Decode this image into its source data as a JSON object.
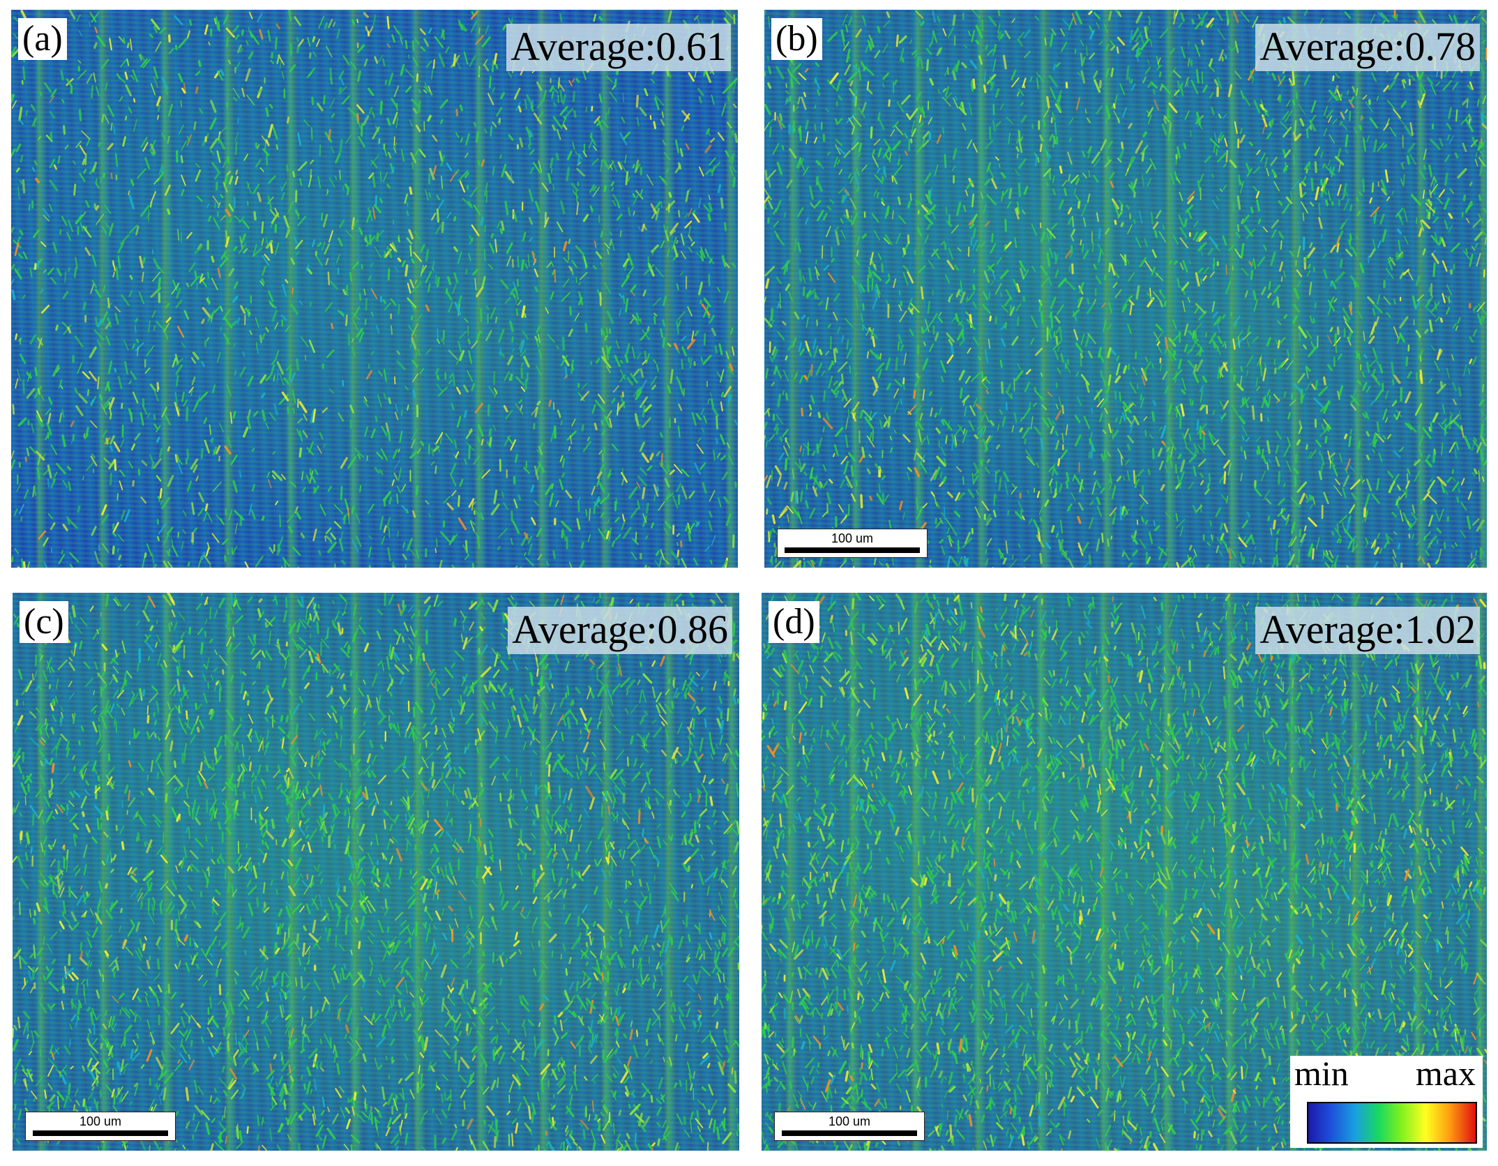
{
  "panels": [
    {
      "id": "a",
      "label": "(a)",
      "average": "Average:0.61",
      "scale_bar": null
    },
    {
      "id": "b",
      "label": "(b)",
      "average": "Average:0.78",
      "scale_bar": "100 um"
    },
    {
      "id": "c",
      "label": "(c)",
      "average": "Average:0.86",
      "scale_bar": "100 um"
    },
    {
      "id": "d",
      "label": "(d)",
      "average": "Average:1.02",
      "scale_bar": "100 um"
    }
  ],
  "colorbar": {
    "min_label": "min",
    "max_label": "max"
  },
  "colors": {
    "map_base": "#1e3fb8",
    "map_green": "#28d23c",
    "map_yellow": "#ffff20",
    "map_red": "#e01010"
  }
}
